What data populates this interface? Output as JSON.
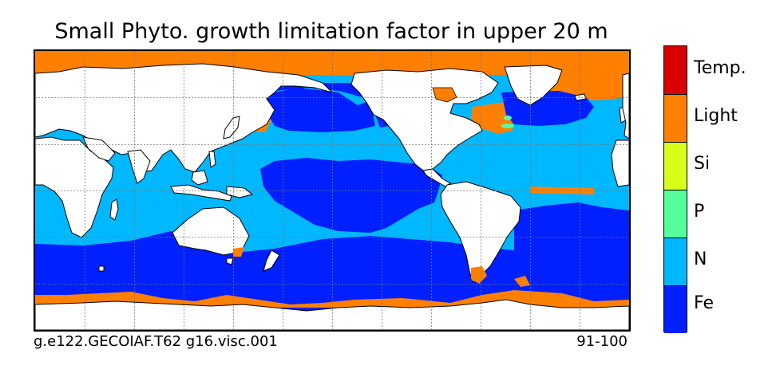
{
  "title": "Small Phyto. growth limitation factor in upper 20 m",
  "footer": {
    "case_name": "g.e122.GECOIAF.T62 g16.visc.001",
    "years": "91-100"
  },
  "colors": {
    "Fe": "#0020ff",
    "N": "#00b8ff",
    "P": "#55ff9a",
    "Si": "#d8ff1a",
    "Light": "#ff8000",
    "Temp.": "#d80000",
    "land": "#ffffff",
    "coast": "#000000",
    "grid": "#777777"
  },
  "legend": {
    "categories": [
      {
        "key": "Temp.",
        "label": "Temp."
      },
      {
        "key": "Light",
        "label": "Light"
      },
      {
        "key": "Si",
        "label": "Si"
      },
      {
        "key": "P",
        "label": "P"
      },
      {
        "key": "N",
        "label": "N"
      },
      {
        "key": "Fe",
        "label": "Fe"
      }
    ]
  },
  "map": {
    "projection": "cylindrical",
    "gridlines": true,
    "dominant_regions": [
      "Fe: Southern Ocean, equatorial/eastern Pacific, subarctic North Pacific, subpolar North Atlantic",
      "N: subtropical gyres of all basins, Indian Ocean",
      "Light: Arctic Ocean, high-latitude coastal seas, Antarctic coastal margin",
      "P: small patches off Newfoundland"
    ]
  }
}
